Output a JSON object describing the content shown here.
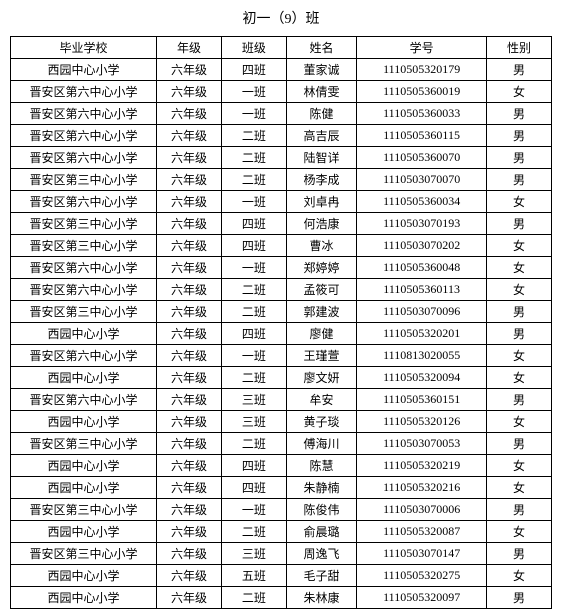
{
  "title": "初一（9）班",
  "background_color": "#ffffff",
  "text_color": "#000000",
  "border_color": "#000000",
  "font_family": "SimSun",
  "title_fontsize": 14,
  "cell_fontsize": 12,
  "columns": [
    {
      "key": "school",
      "label": "毕业学校",
      "width_pct": 27
    },
    {
      "key": "grade",
      "label": "年级",
      "width_pct": 12
    },
    {
      "key": "class",
      "label": "班级",
      "width_pct": 12
    },
    {
      "key": "name",
      "label": "姓名",
      "width_pct": 13
    },
    {
      "key": "id",
      "label": "学号",
      "width_pct": 24
    },
    {
      "key": "sex",
      "label": "性别",
      "width_pct": 12
    }
  ],
  "rows": [
    {
      "school": "西园中心小学",
      "grade": "六年级",
      "class": "四班",
      "name": "董家诚",
      "id": "1110505320179",
      "sex": "男"
    },
    {
      "school": "晋安区第六中心小学",
      "grade": "六年级",
      "class": "一班",
      "name": "林倩雯",
      "id": "1110505360019",
      "sex": "女"
    },
    {
      "school": "晋安区第六中心小学",
      "grade": "六年级",
      "class": "一班",
      "name": "陈健",
      "id": "1110505360033",
      "sex": "男"
    },
    {
      "school": "晋安区第六中心小学",
      "grade": "六年级",
      "class": "二班",
      "name": "高吉辰",
      "id": "1110505360115",
      "sex": "男"
    },
    {
      "school": "晋安区第六中心小学",
      "grade": "六年级",
      "class": "二班",
      "name": "陆智详",
      "id": "1110505360070",
      "sex": "男"
    },
    {
      "school": "晋安区第三中心小学",
      "grade": "六年级",
      "class": "二班",
      "name": "杨李成",
      "id": "1110503070070",
      "sex": "男"
    },
    {
      "school": "晋安区第六中心小学",
      "grade": "六年级",
      "class": "一班",
      "name": "刘卓冉",
      "id": "1110505360034",
      "sex": "女"
    },
    {
      "school": "晋安区第三中心小学",
      "grade": "六年级",
      "class": "四班",
      "name": "何浩康",
      "id": "1110503070193",
      "sex": "男"
    },
    {
      "school": "晋安区第三中心小学",
      "grade": "六年级",
      "class": "四班",
      "name": "曹冰",
      "id": "1110503070202",
      "sex": "女"
    },
    {
      "school": "晋安区第六中心小学",
      "grade": "六年级",
      "class": "一班",
      "name": "郑婷婷",
      "id": "1110505360048",
      "sex": "女"
    },
    {
      "school": "晋安区第六中心小学",
      "grade": "六年级",
      "class": "二班",
      "name": "孟筱可",
      "id": "1110505360113",
      "sex": "女"
    },
    {
      "school": "晋安区第三中心小学",
      "grade": "六年级",
      "class": "二班",
      "name": "郭建波",
      "id": "1110503070096",
      "sex": "男"
    },
    {
      "school": "西园中心小学",
      "grade": "六年级",
      "class": "四班",
      "name": "廖健",
      "id": "1110505320201",
      "sex": "男"
    },
    {
      "school": "晋安区第六中心小学",
      "grade": "六年级",
      "class": "一班",
      "name": "王瑾萱",
      "id": "1110813020055",
      "sex": "女"
    },
    {
      "school": "西园中心小学",
      "grade": "六年级",
      "class": "二班",
      "name": "廖文妍",
      "id": "1110505320094",
      "sex": "女"
    },
    {
      "school": "晋安区第六中心小学",
      "grade": "六年级",
      "class": "三班",
      "name": "牟安",
      "id": "1110505360151",
      "sex": "男"
    },
    {
      "school": "西园中心小学",
      "grade": "六年级",
      "class": "三班",
      "name": "黄子琰",
      "id": "1110505320126",
      "sex": "女"
    },
    {
      "school": "晋安区第三中心小学",
      "grade": "六年级",
      "class": "二班",
      "name": "傅海川",
      "id": "1110503070053",
      "sex": "男"
    },
    {
      "school": "西园中心小学",
      "grade": "六年级",
      "class": "四班",
      "name": "陈慧",
      "id": "1110505320219",
      "sex": "女"
    },
    {
      "school": "西园中心小学",
      "grade": "六年级",
      "class": "四班",
      "name": "朱静楠",
      "id": "1110505320216",
      "sex": "女"
    },
    {
      "school": "晋安区第三中心小学",
      "grade": "六年级",
      "class": "一班",
      "name": "陈俊伟",
      "id": "1110503070006",
      "sex": "男"
    },
    {
      "school": "西园中心小学",
      "grade": "六年级",
      "class": "二班",
      "name": "俞晨璐",
      "id": "1110505320087",
      "sex": "女"
    },
    {
      "school": "晋安区第三中心小学",
      "grade": "六年级",
      "class": "三班",
      "name": "周逸飞",
      "id": "1110503070147",
      "sex": "男"
    },
    {
      "school": "西园中心小学",
      "grade": "六年级",
      "class": "五班",
      "name": "毛子甜",
      "id": "1110505320275",
      "sex": "女"
    },
    {
      "school": "西园中心小学",
      "grade": "六年级",
      "class": "二班",
      "name": "朱林康",
      "id": "1110505320097",
      "sex": "男"
    }
  ]
}
